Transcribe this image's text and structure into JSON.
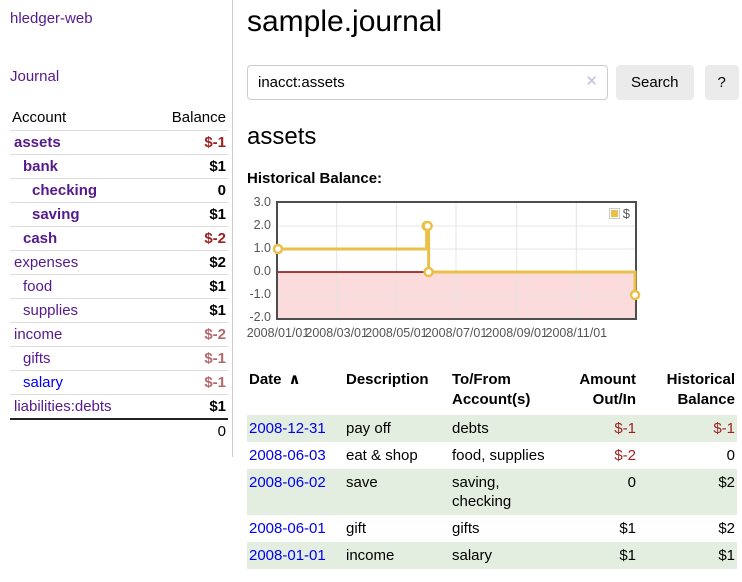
{
  "app": {
    "brand": "hledger-web",
    "nav_journal": "Journal"
  },
  "sidebar": {
    "accounts_header": {
      "account": "Account",
      "balance": "Balance"
    },
    "accounts": [
      {
        "name": "assets",
        "indent": 1,
        "bold": true,
        "balance": "$-1",
        "balance_style": "neg-strong",
        "link_color": "purple"
      },
      {
        "name": "bank",
        "indent": 2,
        "bold": true,
        "balance": "$1",
        "balance_style": "pos",
        "link_color": "purple"
      },
      {
        "name": "checking",
        "indent": 3,
        "bold": true,
        "balance": "0",
        "balance_style": "pos",
        "link_color": "purple"
      },
      {
        "name": "saving",
        "indent": 3,
        "bold": true,
        "balance": "$1",
        "balance_style": "pos",
        "link_color": "purple"
      },
      {
        "name": "cash",
        "indent": 2,
        "bold": true,
        "balance": "$-2",
        "balance_style": "neg-strong",
        "link_color": "purple"
      },
      {
        "name": "expenses",
        "indent": 1,
        "bold": false,
        "balance": "$2",
        "balance_style": "pos",
        "link_color": "purple"
      },
      {
        "name": "food",
        "indent": 2,
        "bold": false,
        "balance": "$1",
        "balance_style": "pos",
        "link_color": "purple"
      },
      {
        "name": "supplies",
        "indent": 2,
        "bold": false,
        "balance": "$1",
        "balance_style": "pos",
        "link_color": "purple"
      },
      {
        "name": "income",
        "indent": 1,
        "bold": false,
        "balance": "$-2",
        "balance_style": "neg-soft",
        "link_color": "purple"
      },
      {
        "name": "gifts",
        "indent": 2,
        "bold": false,
        "balance": "$-1",
        "balance_style": "neg-soft",
        "link_color": "purple"
      },
      {
        "name": "salary",
        "indent": 2,
        "bold": false,
        "balance": "$-1",
        "balance_style": "neg-soft",
        "link_color": "blue"
      },
      {
        "name": "liabilities:debts",
        "indent": 1,
        "bold": false,
        "balance": "$1",
        "balance_style": "pos",
        "link_color": "purple"
      }
    ],
    "total": "0"
  },
  "header": {
    "title": "sample.journal"
  },
  "search": {
    "value": "inacct:assets",
    "clear_icon": "✕",
    "button": "Search",
    "help_button": "?"
  },
  "account_page": {
    "title": "assets",
    "chart_label": "Historical Balance:"
  },
  "chart_data": {
    "type": "line",
    "title": "Historical Balance:",
    "step": true,
    "x_start": "2008-01-01",
    "x_span_days": 365,
    "ylim": [
      -2,
      3
    ],
    "y_ticks": [
      "3.0",
      "2.0",
      "1.0",
      "0.0",
      "-1.0",
      "-2.0"
    ],
    "x_ticks": [
      "2008/01/01",
      "2008/03/01",
      "2008/05/01",
      "2008/07/01",
      "2008/09/01",
      "2008/11/01"
    ],
    "series": [
      {
        "name": "$",
        "color": "#e9c04a",
        "points": [
          {
            "date": "2008-01-01",
            "value": 1
          },
          {
            "date": "2008-06-01",
            "value": 2
          },
          {
            "date": "2008-06-02",
            "value": 2
          },
          {
            "date": "2008-06-03",
            "value": 0
          },
          {
            "date": "2008-12-31",
            "value": -1
          }
        ]
      }
    ],
    "grid": {
      "gridline_color": "#e4e4e4",
      "border_color": "#4d4d4d",
      "zero_line_color": "#8b0000",
      "negative_region_color": "#fbdbdb"
    },
    "legend_position": "top-right"
  },
  "register": {
    "columns": [
      "Date",
      "Description",
      "To/From Account(s)",
      "Amount Out/In",
      "Historical Balance"
    ],
    "sort_indicator": "∧",
    "rows": [
      {
        "date": "2008-12-31",
        "description": "pay off",
        "accounts": "debts",
        "amount": "$-1",
        "amount_neg": true,
        "balance": "$-1",
        "balance_neg": true
      },
      {
        "date": "2008-06-03",
        "description": "eat & shop",
        "accounts": "food, supplies",
        "amount": "$-2",
        "amount_neg": true,
        "balance": "0",
        "balance_neg": false
      },
      {
        "date": "2008-06-02",
        "description": "save",
        "accounts": "saving, checking",
        "amount": "0",
        "amount_neg": false,
        "balance": "$2",
        "balance_neg": false
      },
      {
        "date": "2008-06-01",
        "description": "gift",
        "accounts": "gifts",
        "amount": "$1",
        "amount_neg": false,
        "balance": "$2",
        "balance_neg": false
      },
      {
        "date": "2008-01-01",
        "description": "income",
        "accounts": "salary",
        "amount": "$1",
        "amount_neg": false,
        "balance": "$1",
        "balance_neg": false
      }
    ]
  }
}
